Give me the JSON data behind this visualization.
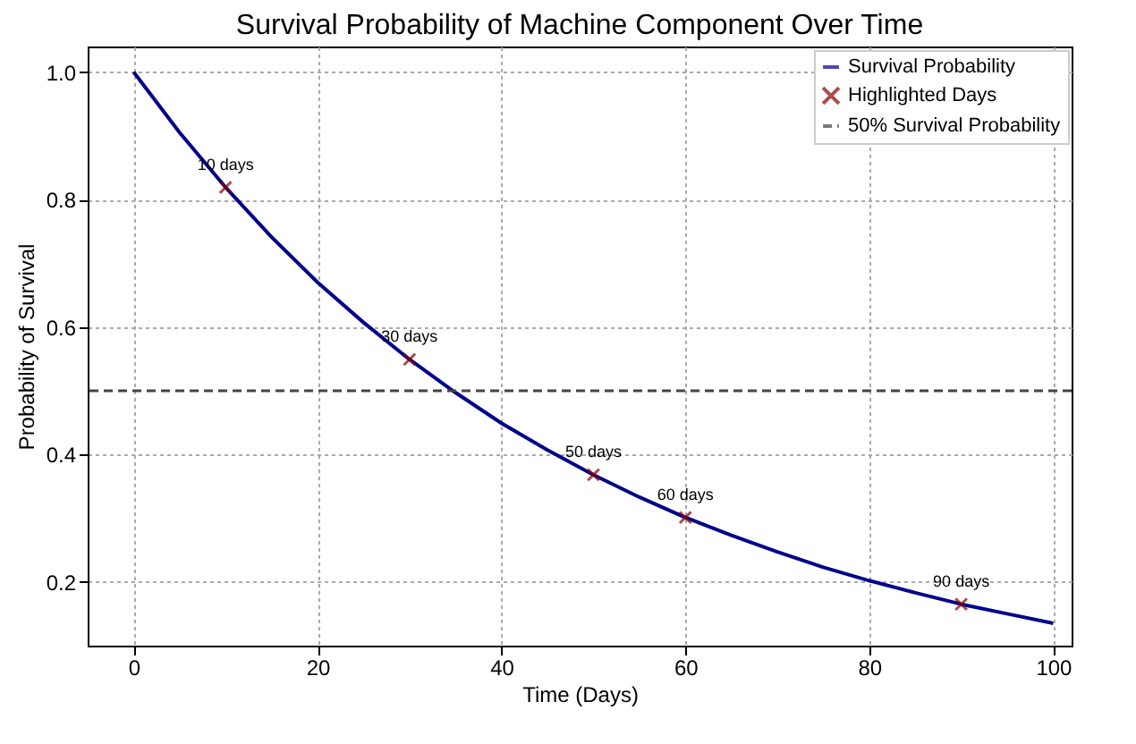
{
  "chart_data": {
    "type": "line",
    "title": "Survival Probability of Machine Component Over Time",
    "xlabel": "Time (Days)",
    "ylabel": "Probability of Survival",
    "series": [
      {
        "name": "Survival Probability",
        "color": "#00008b",
        "marker": "none",
        "line_style": "solid",
        "x": [
          0,
          5,
          10,
          15,
          20,
          25,
          30,
          35,
          40,
          45,
          50,
          55,
          60,
          65,
          70,
          75,
          80,
          85,
          90,
          95,
          100
        ],
        "values": [
          1.0,
          0.905,
          0.819,
          0.741,
          0.67,
          0.607,
          0.549,
          0.497,
          0.449,
          0.407,
          0.368,
          0.333,
          0.301,
          0.273,
          0.247,
          0.223,
          0.202,
          0.183,
          0.165,
          0.15,
          0.135
        ]
      },
      {
        "name": "Highlighted Days",
        "type": "scatter",
        "color": "#8b0000",
        "marker": "cross",
        "x": [
          10,
          30,
          50,
          60,
          90
        ],
        "values": [
          0.819,
          0.549,
          0.368,
          0.301,
          0.165
        ]
      }
    ],
    "ref_lines": [
      {
        "axis": "y",
        "value": 0.5,
        "label": "50% Survival Probability",
        "color": "#444444",
        "line_style": "dashed"
      }
    ],
    "annotations": [
      {
        "text": "10 days",
        "x": 10,
        "y": 0.819
      },
      {
        "text": "30 days",
        "x": 30,
        "y": 0.549
      },
      {
        "text": "50 days",
        "x": 50,
        "y": 0.368
      },
      {
        "text": "60 days",
        "x": 60,
        "y": 0.301
      },
      {
        "text": "90 days",
        "x": 90,
        "y": 0.165
      }
    ],
    "xlim": [
      -5,
      102
    ],
    "xticks": [
      0,
      20,
      40,
      60,
      80,
      100
    ],
    "ylim": [
      0.1,
      1.04
    ],
    "yticks": [
      0.2,
      0.4,
      0.6,
      0.8,
      {
        "value": 1.0,
        "label": "1.0"
      }
    ],
    "grid": true,
    "legend": "top right"
  }
}
